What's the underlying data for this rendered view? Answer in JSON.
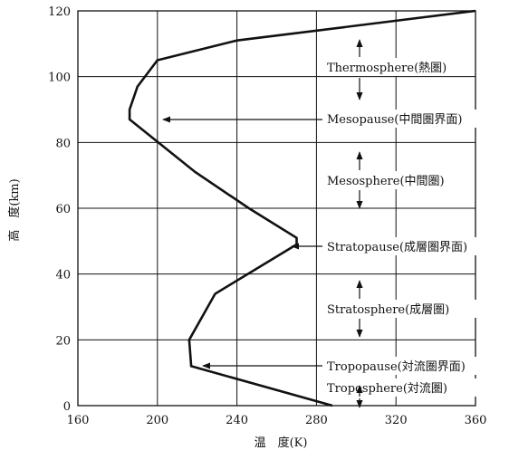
{
  "chart_data": {
    "type": "line",
    "title": "",
    "xlabel": "温　度(K)",
    "ylabel": "高　度(km)",
    "xlim": [
      160,
      360
    ],
    "ylim": [
      0,
      120
    ],
    "grid": true,
    "x_ticks": [
      "160",
      "200",
      "240",
      "280",
      "320",
      "360"
    ],
    "y_ticks": [
      "0",
      "20",
      "40",
      "60",
      "80",
      "100",
      "120"
    ],
    "series": [
      {
        "points": [
          {
            "x": 288,
            "y": 0
          },
          {
            "x": 217,
            "y": 12
          },
          {
            "x": 216,
            "y": 20
          },
          {
            "x": 229,
            "y": 34
          },
          {
            "x": 270,
            "y": 49
          },
          {
            "x": 270,
            "y": 51
          },
          {
            "x": 246,
            "y": 60
          },
          {
            "x": 219,
            "y": 71
          },
          {
            "x": 186,
            "y": 87
          },
          {
            "x": 186,
            "y": 90
          },
          {
            "x": 190,
            "y": 97
          },
          {
            "x": 200,
            "y": 105
          },
          {
            "x": 240,
            "y": 111
          },
          {
            "x": 360,
            "y": 120
          }
        ]
      }
    ],
    "annotations": [
      {
        "name": "thermosphere",
        "text": "Thermosphere(熱圏)",
        "marker": "double-arrow"
      },
      {
        "name": "mesopause",
        "text": "Mesopause(中間圏界面)",
        "marker": "left-arrow"
      },
      {
        "name": "mesosphere",
        "text": "Mesosphere(中間圏)",
        "marker": "double-arrow"
      },
      {
        "name": "stratopause",
        "text": "Stratopause(成層圏界面)",
        "marker": "left-arrow"
      },
      {
        "name": "stratosphere",
        "text": "Stratosphere(成層圏)",
        "marker": "double-arrow"
      },
      {
        "name": "tropopause",
        "text": "Tropopause(対流圏界面)",
        "marker": "left-arrow"
      },
      {
        "name": "troposphere",
        "text": "Troposphere(対流圏)",
        "marker": "double-arrow"
      }
    ]
  }
}
